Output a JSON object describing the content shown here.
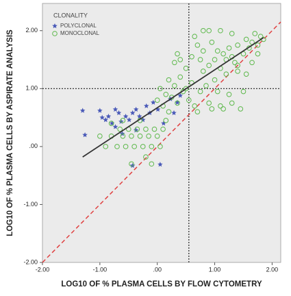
{
  "chart_data": {
    "type": "scatter",
    "xlabel": "LOG10 OF % PLASMA CELLS BY FLOW CYTOMETRY",
    "ylabel": "LOG10 OF % PLASMA CELLS BY ASPIRATE ANALYSIS",
    "legend_title": "CLONALITY",
    "legend_position": "upper left",
    "xlim": [
      -2,
      2.15
    ],
    "ylim": [
      -2,
      2.47
    ],
    "xticks": [
      {
        "value": -2,
        "label": "-2.00"
      },
      {
        "value": -1,
        "label": "-1.00"
      },
      {
        "value": 0,
        "label": ".00"
      },
      {
        "value": 1,
        "label": "1.00"
      },
      {
        "value": 2,
        "label": "2.00"
      }
    ],
    "yticks": [
      {
        "value": -2,
        "label": "-2.00"
      },
      {
        "value": -1,
        "label": "-1.00"
      },
      {
        "value": 0,
        "label": ".00"
      },
      {
        "value": 1,
        "label": "1.00"
      },
      {
        "value": 2,
        "label": "2.00"
      }
    ],
    "background": "#ebebeb",
    "vline": {
      "x": 0.55,
      "color": "#222222"
    },
    "hline": {
      "y": 1,
      "color": "#222222"
    },
    "identity_line": {
      "color": "#e04040"
    },
    "fit_line": {
      "x": [
        -1.3,
        1.85
      ],
      "y": [
        -0.18,
        1.88
      ],
      "color": "#333333"
    },
    "series": [
      {
        "name": "POLYCLONAL",
        "marker": "star",
        "color": "#4a5ab8",
        "x": [
          -1.3,
          -1.26,
          -1.0,
          -0.96,
          -0.9,
          -0.85,
          -0.79,
          -0.73,
          -0.67,
          -0.63,
          -0.55,
          -0.49,
          -0.43,
          -0.37,
          -0.31,
          -0.25,
          -0.19,
          -0.13,
          -0.07,
          0.01,
          0.05,
          0.11,
          0.23,
          0.29,
          0.35,
          0.4,
          -0.43,
          -0.61,
          -0.37,
          -0.73
        ],
        "y": [
          0.62,
          0.2,
          0.62,
          0.5,
          0.46,
          0.52,
          0.4,
          0.64,
          0.58,
          0.43,
          0.52,
          0.46,
          0.58,
          0.64,
          0.52,
          0.46,
          0.7,
          0.58,
          0.76,
          0.64,
          -0.31,
          0.4,
          0.82,
          0.58,
          0.76,
          0.88,
          -0.33,
          0.22,
          0.28,
          0.34
        ]
      },
      {
        "name": "MONOCLONAL",
        "marker": "circle",
        "color": "#5cb84a",
        "x": [
          -1.0,
          -0.9,
          -0.8,
          -0.7,
          -0.65,
          -0.6,
          -0.55,
          -0.5,
          -0.45,
          -0.4,
          -0.35,
          -0.3,
          -0.25,
          -0.2,
          -0.15,
          -0.1,
          -0.05,
          0.0,
          0.05,
          -0.45,
          -0.2,
          -0.1,
          0.1,
          0.15,
          0.2,
          -0.3,
          -0.6,
          -0.8,
          0.0,
          0.05,
          0.1,
          0.15,
          0.2,
          0.25,
          0.3,
          0.35,
          0.4,
          0.45,
          0.5,
          0.55,
          0.6,
          0.65,
          0.7,
          0.75,
          0.8,
          0.85,
          0.9,
          0.95,
          1.0,
          1.05,
          1.1,
          1.15,
          1.2,
          1.25,
          1.3,
          1.4,
          1.45,
          1.5,
          0.35,
          0.4,
          0.3,
          0.5,
          0.6,
          0.7,
          0.75,
          0.8,
          0.9,
          0.95,
          1.0,
          1.05,
          1.1,
          1.15,
          1.2,
          1.25,
          1.3,
          1.35,
          1.4,
          1.5,
          1.55,
          1.6,
          1.65,
          1.7,
          1.75,
          1.8,
          1.85,
          1.55,
          1.65,
          1.75,
          0.8,
          0.9,
          1.1,
          0.65,
          1.3,
          1.4
        ],
        "y": [
          0.18,
          0.0,
          0.18,
          0.0,
          0.3,
          0.18,
          0.0,
          0.3,
          0.18,
          0.0,
          0.3,
          0.18,
          0.0,
          0.3,
          0.18,
          0.0,
          0.3,
          0.18,
          0.0,
          -0.3,
          -0.18,
          -0.3,
          0.3,
          0.45,
          0.6,
          0.45,
          0.45,
          0.4,
          0.8,
          1.0,
          0.7,
          0.9,
          1.15,
          0.85,
          1.05,
          0.75,
          1.2,
          0.95,
          1.0,
          0.8,
          1.1,
          0.7,
          0.6,
          0.95,
          1.3,
          1.05,
          0.75,
          0.65,
          1.15,
          0.95,
          0.7,
          0.65,
          1.25,
          0.9,
          0.75,
          1.4,
          0.65,
          0.95,
          1.6,
          1.5,
          1.45,
          1.35,
          1.55,
          1.75,
          1.5,
          1.65,
          1.4,
          1.8,
          1.5,
          1.65,
          1.35,
          1.6,
          1.5,
          1.7,
          1.55,
          1.45,
          1.75,
          1.6,
          1.85,
          1.7,
          1.8,
          1.95,
          1.75,
          1.9,
          1.85,
          1.25,
          1.45,
          1.6,
          2.0,
          2.0,
          2.0,
          1.9,
          1.95,
          1.3
        ]
      }
    ]
  }
}
